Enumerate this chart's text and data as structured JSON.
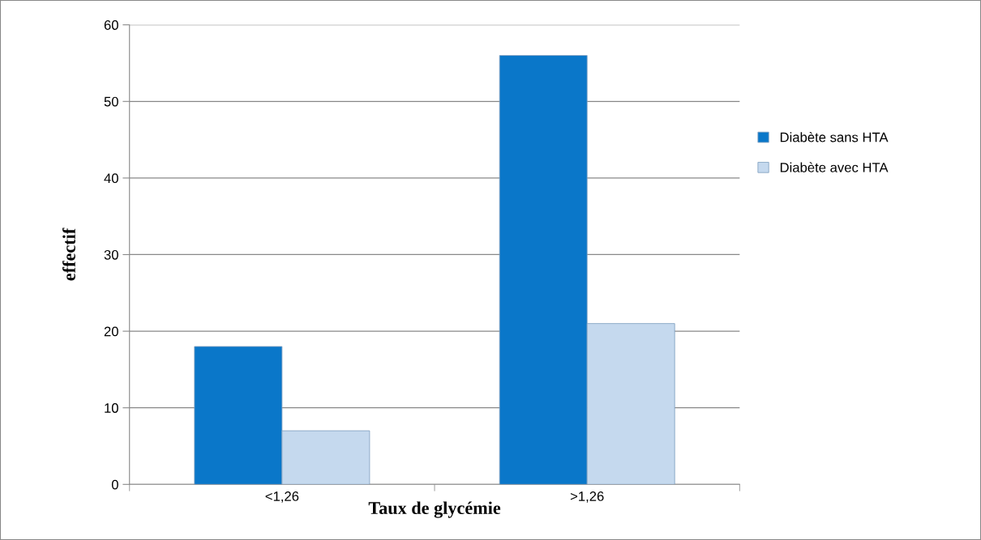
{
  "chart_data": {
    "type": "bar",
    "xlabel": "Taux de glycémie",
    "ylabel": "effectif",
    "categories": [
      "<1,26",
      ">1,26"
    ],
    "series": [
      {
        "name": "Diabète sans HTA",
        "color": "#0a77c9",
        "values": [
          18,
          56
        ]
      },
      {
        "name": "Diabète avec HTA",
        "color": "#c5d9ee",
        "values": [
          7,
          21
        ]
      }
    ],
    "ylim": [
      0,
      60
    ],
    "yticks": [
      0,
      10,
      20,
      30,
      40,
      50,
      60
    ],
    "grid": "y",
    "legend": "right"
  }
}
